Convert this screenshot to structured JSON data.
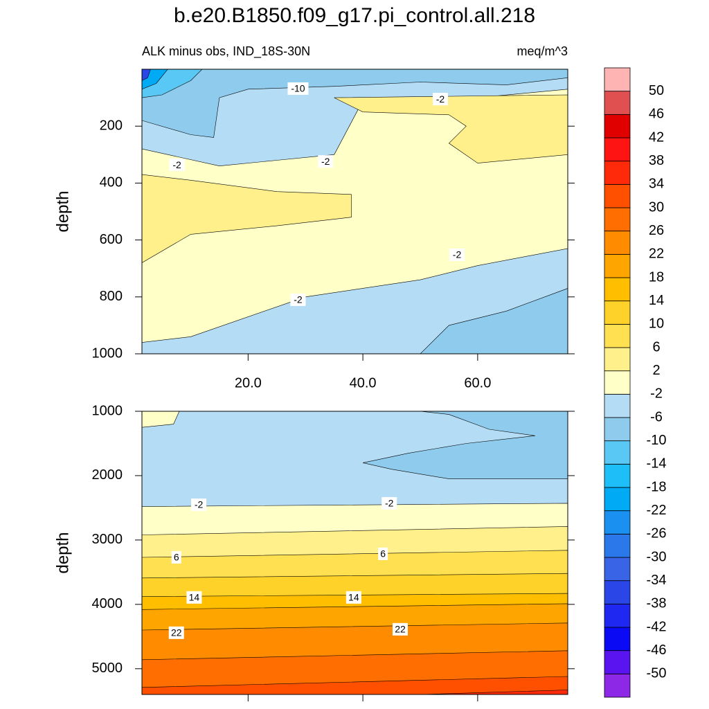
{
  "chart_data": {
    "type": "contour",
    "title": "b.e20.B1850.f09_g17.pi_control.all.218",
    "subtitle": "ALK minus obs, IND_18S-30N",
    "units": "meq/m^3",
    "colorbar": {
      "levels": [
        -50,
        -46,
        -42,
        -38,
        -34,
        -30,
        -26,
        -22,
        -18,
        -14,
        -10,
        -6,
        -2,
        2,
        6,
        10,
        14,
        18,
        22,
        26,
        30,
        34,
        38,
        42,
        46,
        50
      ],
      "colors": [
        "#8c28e6",
        "#5a14f0",
        "#0a0af5",
        "#1e28f0",
        "#2a46e6",
        "#3a64e6",
        "#2a78ea",
        "#1a90f0",
        "#00aaf5",
        "#1ebef8",
        "#5ac8f5",
        "#8ecbec",
        "#b4dcf5",
        "#ffffc8",
        "#fff08c",
        "#ffe050",
        "#ffd22a",
        "#ffbe00",
        "#ffa500",
        "#ff8c00",
        "#ff6e00",
        "#ff5000",
        "#ff2a0a",
        "#ff1414",
        "#e00000",
        "#e05050",
        "#ffb4b4"
      ]
    },
    "panels": [
      {
        "ylabel": "depth",
        "xlim": [
          1.5,
          75.7
        ],
        "ylim": [
          0,
          1000
        ],
        "xticks": [
          {
            "value": 20,
            "label": "20.0"
          },
          {
            "value": 40,
            "label": "40.0"
          },
          {
            "value": 60,
            "label": "60.0"
          }
        ],
        "yticks": [
          200,
          400,
          600,
          800,
          1000
        ],
        "base_level": -2,
        "bands": [
          {
            "level": -6,
            "outline": [
              [
                1.5,
                0
              ],
              [
                75.7,
                0
              ],
              [
                75.7,
                70
              ],
              [
                60,
                100
              ],
              [
                50,
                110
              ],
              [
                40,
                110
              ],
              [
                35,
                300
              ],
              [
                25,
                320
              ],
              [
                15,
                340
              ],
              [
                1.5,
                280
              ]
            ]
          },
          {
            "level": -10,
            "outline": [
              [
                1.5,
                0
              ],
              [
                75.7,
                0
              ],
              [
                75.7,
                30
              ],
              [
                65,
                55
              ],
              [
                50,
                45
              ],
              [
                35,
                60
              ],
              [
                20,
                70
              ],
              [
                15,
                100
              ],
              [
                14,
                240
              ],
              [
                10,
                230
              ],
              [
                1.5,
                180
              ]
            ]
          },
          {
            "level": -14,
            "outline": [
              [
                1.5,
                0
              ],
              [
                12,
                0
              ],
              [
                10,
                40
              ],
              [
                5,
                90
              ],
              [
                1.5,
                100
              ]
            ]
          },
          {
            "level": -22,
            "outline": [
              [
                1.5,
                0
              ],
              [
                6,
                0
              ],
              [
                4,
                50
              ],
              [
                1.5,
                70
              ]
            ]
          },
          {
            "level": -38,
            "outline": [
              [
                1.5,
                0
              ],
              [
                3,
                0
              ],
              [
                2.5,
                30
              ],
              [
                1.5,
                40
              ]
            ]
          },
          {
            "level": 2,
            "outline": [
              [
                35,
                100
              ],
              [
                75.7,
                90
              ],
              [
                75.7,
                300
              ],
              [
                60,
                330
              ],
              [
                55,
                260
              ],
              [
                58,
                200
              ],
              [
                55,
                160
              ],
              [
                40,
                150
              ]
            ]
          },
          {
            "level": 2,
            "outline": [
              [
                1.5,
                370
              ],
              [
                10,
                390
              ],
              [
                25,
                430
              ],
              [
                38,
                440
              ],
              [
                38,
                520
              ],
              [
                25,
                550
              ],
              [
                10,
                580
              ],
              [
                1.5,
                680
              ]
            ]
          },
          {
            "level": -6,
            "outline": [
              [
                1.5,
                960
              ],
              [
                10,
                940
              ],
              [
                30,
                800
              ],
              [
                50,
                740
              ],
              [
                60,
                690
              ],
              [
                75.7,
                630
              ],
              [
                75.7,
                1000
              ],
              [
                1.5,
                1000
              ]
            ]
          },
          {
            "level": -10,
            "outline": [
              [
                50,
                1000
              ],
              [
                55,
                900
              ],
              [
                65,
                850
              ],
              [
                75.7,
                770
              ],
              [
                75.7,
                1000
              ]
            ]
          }
        ],
        "contour_labels": [
          {
            "value": -10,
            "at": [
              28.7,
              68
            ]
          },
          {
            "value": -2,
            "at": [
              53.5,
              105
            ]
          },
          {
            "value": -2,
            "at": [
              7.6,
              336
            ]
          },
          {
            "value": -2,
            "at": [
              33.5,
              324
            ]
          },
          {
            "value": -2,
            "at": [
              56.4,
              652
            ]
          },
          {
            "value": -2,
            "at": [
              28.7,
              810
            ]
          }
        ]
      },
      {
        "ylabel": "depth",
        "xlim": [
          1.5,
          75.7
        ],
        "ylim": [
          1000,
          5400
        ],
        "xticks": [
          20,
          40,
          60
        ],
        "yticks": [
          1000,
          2000,
          3000,
          4000,
          5000
        ],
        "base_level": -6,
        "bands": [
          {
            "level": -10,
            "outline": [
              [
                40,
                1800
              ],
              [
                48,
                1650
              ],
              [
                58,
                1500
              ],
              [
                70,
                1380
              ],
              [
                62,
                1280
              ],
              [
                55,
                1050
              ],
              [
                50,
                1000
              ],
              [
                75.7,
                1000
              ],
              [
                75.7,
                2050
              ],
              [
                55,
                2050
              ],
              [
                45,
                1900
              ]
            ]
          },
          {
            "level": -2,
            "outline": [
              [
                1.5,
                1000
              ],
              [
                8,
                1000
              ],
              [
                7,
                1200
              ],
              [
                1.5,
                1250
              ]
            ]
          },
          {
            "level": -2,
            "outline": [
              [
                1.5,
                2480
              ],
              [
                75.7,
                2430
              ],
              [
                75.7,
                5400
              ],
              [
                1.5,
                5400
              ]
            ]
          },
          {
            "level": 2,
            "outline": [
              [
                1.5,
                2920
              ],
              [
                75.7,
                2790
              ],
              [
                75.7,
                5400
              ],
              [
                1.5,
                5400
              ]
            ]
          },
          {
            "level": 6,
            "outline": [
              [
                1.5,
                3270
              ],
              [
                75.7,
                3160
              ],
              [
                75.7,
                5400
              ],
              [
                1.5,
                5400
              ]
            ]
          },
          {
            "level": 10,
            "outline": [
              [
                1.5,
                3590
              ],
              [
                75.7,
                3520
              ],
              [
                75.7,
                5400
              ],
              [
                1.5,
                5400
              ]
            ]
          },
          {
            "level": 14,
            "outline": [
              [
                1.5,
                3880
              ],
              [
                75.7,
                3830
              ],
              [
                75.7,
                5400
              ],
              [
                1.5,
                5400
              ]
            ]
          },
          {
            "level": 18,
            "outline": [
              [
                1.5,
                4080
              ],
              [
                75.7,
                3990
              ],
              [
                75.7,
                5400
              ],
              [
                1.5,
                5400
              ]
            ]
          },
          {
            "level": 22,
            "outline": [
              [
                1.5,
                4400
              ],
              [
                75.7,
                4290
              ],
              [
                75.7,
                5400
              ],
              [
                1.5,
                5400
              ]
            ]
          },
          {
            "level": 26,
            "outline": [
              [
                1.5,
                4860
              ],
              [
                75.7,
                4720
              ],
              [
                75.7,
                5400
              ],
              [
                1.5,
                5400
              ]
            ]
          },
          {
            "level": 30,
            "outline": [
              [
                1.5,
                5290
              ],
              [
                75.7,
                5120
              ],
              [
                75.7,
                5400
              ],
              [
                1.5,
                5400
              ]
            ]
          },
          {
            "level": 34,
            "outline": [
              [
                50,
                5400
              ],
              [
                75.7,
                5330
              ],
              [
                75.7,
                5400
              ]
            ]
          }
        ],
        "contour_labels": [
          {
            "value": -2,
            "at": [
              11.4,
              2452
            ]
          },
          {
            "value": -2,
            "at": [
              44.6,
              2430
            ]
          },
          {
            "value": 6,
            "at": [
              7.5,
              3269
            ]
          },
          {
            "value": 6,
            "at": [
              43.5,
              3215
            ]
          },
          {
            "value": 14,
            "at": [
              10.6,
              3892
            ]
          },
          {
            "value": 14,
            "at": [
              38.4,
              3892
            ]
          },
          {
            "value": 22,
            "at": [
              7.5,
              4441
            ]
          },
          {
            "value": 22,
            "at": [
              46.5,
              4387
            ]
          }
        ]
      }
    ]
  }
}
